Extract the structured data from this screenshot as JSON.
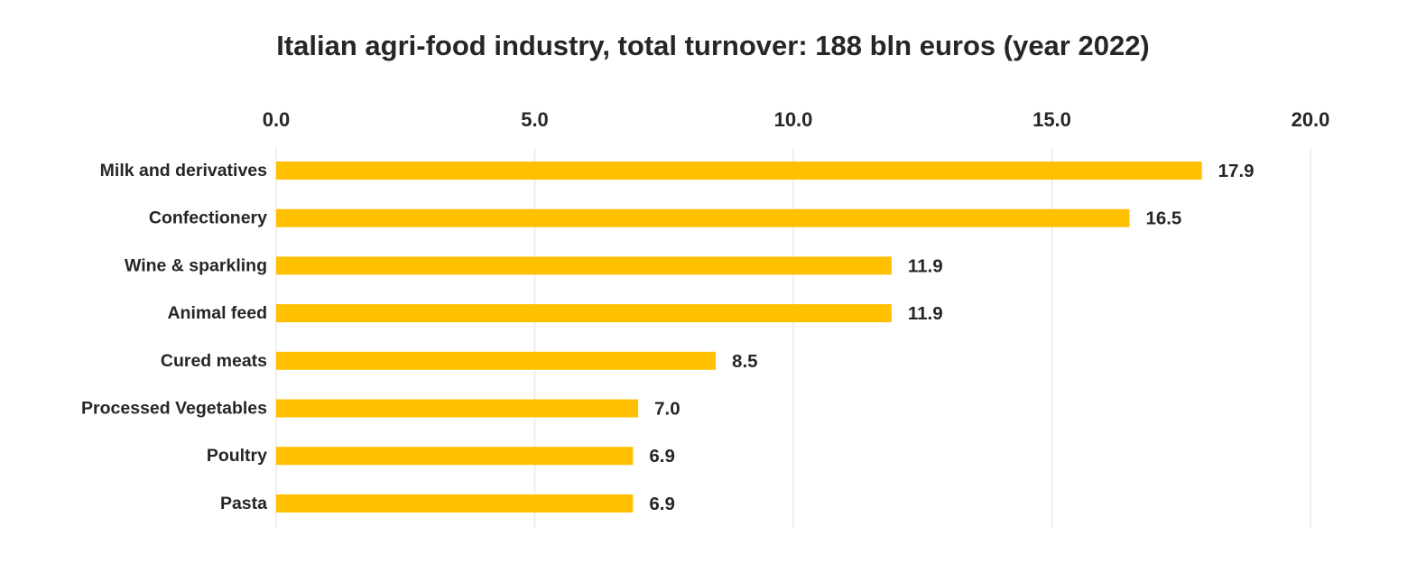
{
  "chart_data": {
    "type": "bar",
    "orientation": "horizontal",
    "title": "Italian agri-food industry, total turnover: 188 bln euros (year 2022)",
    "xlabel": "",
    "ylabel": "",
    "xlim": [
      0,
      20
    ],
    "x_ticks": [
      "0.0",
      "5.0",
      "10.0",
      "15.0",
      "20.0"
    ],
    "x_tick_values": [
      0,
      5,
      10,
      15,
      20
    ],
    "x_axis_position": "top",
    "grid": true,
    "legend": "none",
    "categories": [
      "Milk and derivatives",
      "Confectionery",
      "Wine & sparkling",
      "Animal feed",
      "Cured meats",
      "Processed Vegetables",
      "Poultry",
      "Pasta"
    ],
    "values": [
      17.9,
      16.5,
      11.9,
      11.9,
      8.5,
      7.0,
      6.9,
      6.9
    ],
    "value_labels": [
      "17.9",
      "16.5",
      "11.9",
      "11.9",
      "8.5",
      "7.0",
      "6.9",
      "6.9"
    ],
    "colors": {
      "bar": "#ffc000",
      "text": "#262626",
      "grid": "#e4e4e4",
      "background": "#ffffff"
    }
  }
}
